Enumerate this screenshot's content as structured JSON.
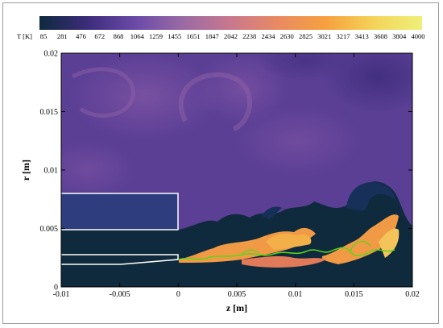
{
  "chart_data": {
    "type": "heatmap",
    "colorbar": {
      "label": "T [K]",
      "ticks": [
        85,
        281,
        476,
        672,
        868,
        1064,
        1259,
        1455,
        1651,
        1847,
        2042,
        2238,
        2434,
        2630,
        2825,
        3021,
        3217,
        3413,
        3608,
        3804,
        4000
      ],
      "range": [
        85,
        4000
      ],
      "colors": [
        "#0e2a3e",
        "#3c2c7a",
        "#6a4aa8",
        "#9a6aa4",
        "#c9788e",
        "#ea8a62",
        "#f7a13f",
        "#f4d45a",
        "#eef07a"
      ]
    },
    "xlabel": "z [m]",
    "ylabel": "r [m]",
    "xlim": [
      -0.01,
      0.02
    ],
    "ylim": [
      0,
      0.02
    ],
    "xticks": [
      -0.01,
      -0.005,
      0,
      0.005,
      0.01,
      0.015,
      0.02
    ],
    "xtick_labels": [
      "-0.01",
      "-0.005",
      "0",
      "0.005",
      "0.01",
      "0.015",
      "0.02"
    ],
    "yticks": [
      0,
      0.005,
      0.01,
      0.015,
      0.02
    ],
    "ytick_labels": [
      "0",
      "0.005",
      "0.01",
      "0.015",
      "0.02"
    ],
    "injector_outline_color": "#ffffff",
    "flame_contour_color": "#56d81c",
    "background_color": "#5a3f95"
  }
}
